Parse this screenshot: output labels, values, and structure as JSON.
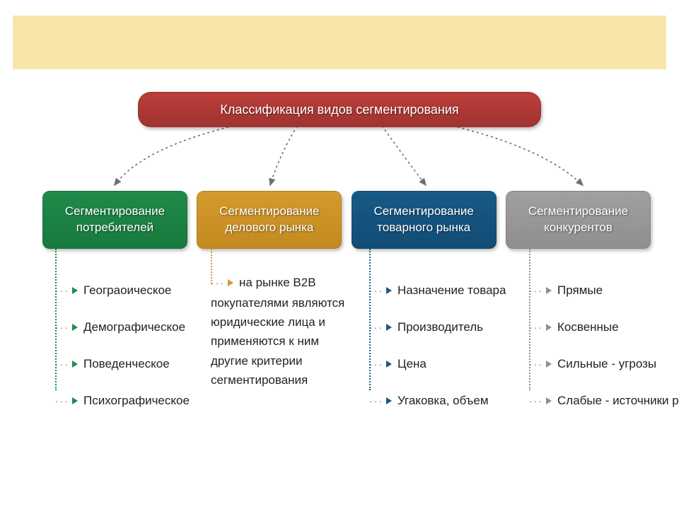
{
  "background_band_color": "#f8e5a8",
  "title": {
    "text": "Классификация видов сегментирования",
    "bg_gradient_top": "#ba3e3a",
    "bg_gradient_bottom": "#a03430"
  },
  "connector_color": "#6f6f6f",
  "branches": [
    {
      "line1": "Сегментирование",
      "line2": "потребителей",
      "bg_top": "#1f8a4a",
      "bg_bottom": "#187a3e",
      "arrow_color": "#1f8a4a",
      "dot_color": "#1f8a4a",
      "items": [
        "Геограоическое",
        "Демографическое",
        "Поведенческое",
        "Психографическое"
      ]
    },
    {
      "line1": "Сегментирование",
      "line2": "делового рынка",
      "bg_top": "#d49a2d",
      "bg_bottom": "#c38a20",
      "arrow_color": "#d49a2d",
      "dot_color": "#d49a2d",
      "description_lead": "на рынке В2В",
      "description_rest": "покупателями являются юридические лица и применяются  к ним другие критерии сегментирования"
    },
    {
      "line1": "Сегментирование",
      "line2": "товарного рынка",
      "bg_top": "#175a87",
      "bg_bottom": "#124c74",
      "arrow_color": "#175a87",
      "dot_color": "#175a87",
      "items": [
        "Назначение товара",
        "Производитель",
        "Цена",
        "Угаковка, объем"
      ]
    },
    {
      "line1": "Сегментирование",
      "line2": "конкурентов",
      "bg_top": "#a0a0a0",
      "bg_bottom": "#8f8f8f",
      "arrow_color": "#8f8f8f",
      "dot_color": "#8f8f8f",
      "items": [
        "Прямые",
        "Косвенные",
        "Сильные - угрозы",
        "Слабые - источники роста"
      ]
    }
  ],
  "layout": {
    "col_left": [
      60,
      280,
      504,
      730
    ],
    "item_dot_indent": 18
  }
}
